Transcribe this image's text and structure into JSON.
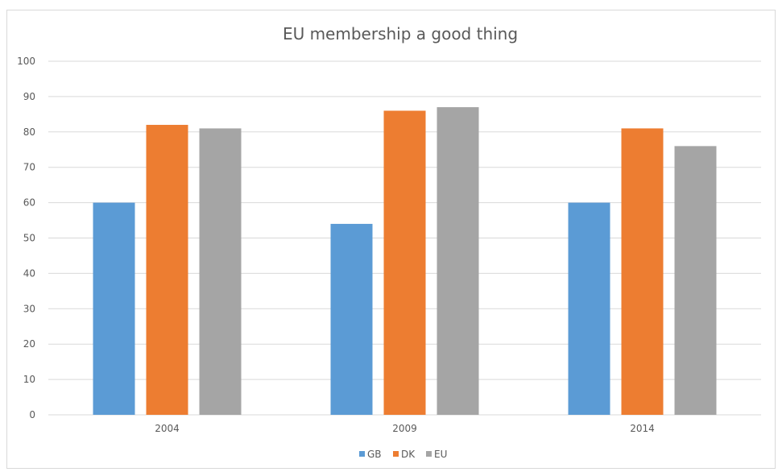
{
  "chart_data": {
    "type": "bar",
    "title": "EU membership a good thing",
    "categories": [
      "2004",
      "2009",
      "2014"
    ],
    "series": [
      {
        "name": "GB",
        "values": [
          60,
          54,
          60
        ],
        "color": "#5b9bd5"
      },
      {
        "name": "DK",
        "values": [
          82,
          86,
          81
        ],
        "color": "#ed7d31"
      },
      {
        "name": "EU",
        "values": [
          81,
          87,
          76
        ],
        "color": "#a5a5a5"
      }
    ],
    "yticks": [
      "0",
      "10",
      "20",
      "30",
      "40",
      "50",
      "60",
      "70",
      "80",
      "90",
      "100"
    ],
    "ylim": [
      0,
      100
    ],
    "grid": true,
    "legend_position": "bottom"
  }
}
